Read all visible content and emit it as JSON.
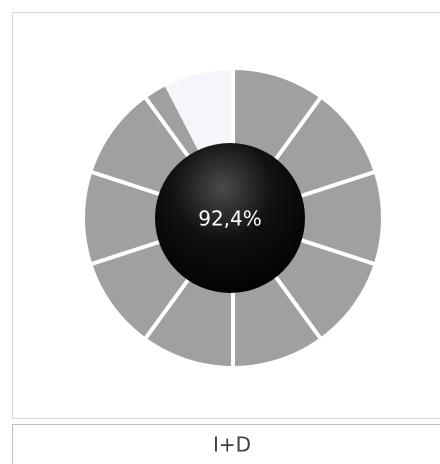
{
  "chart_data": {
    "type": "radial_gauge",
    "value": 92.4,
    "value_label": "92,4%",
    "max": 100,
    "segments": 10,
    "color": "#a0a0a0",
    "empty_color": "#f5f6fb",
    "label": "I+D"
  }
}
